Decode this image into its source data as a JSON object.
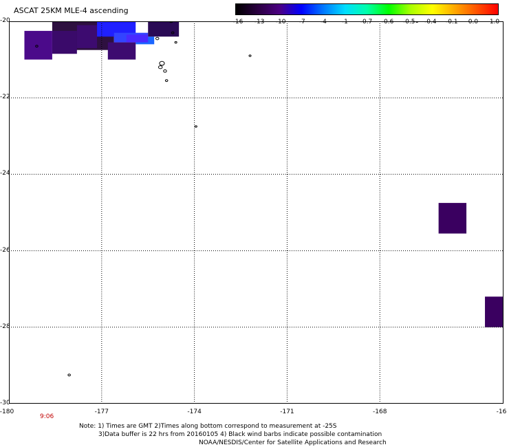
{
  "title": "ASCAT 25KM MLE-4 ascending",
  "colorbar": {
    "labels": [
      "-16",
      "-13",
      "-10",
      "-7",
      "-4",
      "-1",
      "-0.7",
      "-0.6",
      "-0.5",
      "-0.4",
      "-0.1",
      "0.0",
      "1.0"
    ],
    "colors": [
      "#000000",
      "#2a0040",
      "#4b0082",
      "#0000ff",
      "#0077ff",
      "#00ddff",
      "#00ffaa",
      "#00ff00",
      "#aaff00",
      "#ffff00",
      "#ffaa00",
      "#ff5500",
      "#ff0000"
    ]
  },
  "axes": {
    "lat_labels": [
      "-20",
      "-22",
      "-24",
      "-26",
      "-28",
      "-30"
    ],
    "lon_labels": [
      "-180",
      "-177",
      "-174",
      "-171",
      "-168",
      "-16"
    ]
  },
  "time_label": "9:06",
  "notes": {
    "line1": "Note: 1) Times are GMT 2)Times along bottom correspond to measurement at -25S",
    "line2": "3)Data buffer is 22 hrs from 20160105 4) Black wind barbs indicate possible contamination",
    "line3": "NOAA/NESDIS/Center for Satellite Applications and Research"
  },
  "map_data": {
    "lat_range": [
      -30,
      -20
    ],
    "lon_range": [
      -180,
      -164
    ],
    "grid_lats": [
      -22,
      -24,
      -26,
      -28
    ],
    "grid_lons": [
      -177,
      -174,
      -171,
      -168
    ],
    "cells": [
      {
        "lon0": -178.6,
        "lon1": -176.6,
        "lat0": -20.75,
        "lat1": -20.0,
        "color": "#2e1040"
      },
      {
        "lon0": -179.5,
        "lon1": -178.6,
        "lat0": -21.0,
        "lat1": -20.25,
        "color": "#4b0a8a"
      },
      {
        "lon0": -178.6,
        "lon1": -177.8,
        "lat0": -20.85,
        "lat1": -20.25,
        "color": "#3a0a6a"
      },
      {
        "lon0": -177.8,
        "lon1": -177.15,
        "lat0": -20.7,
        "lat1": -20.1,
        "color": "#3d0b70"
      },
      {
        "lon0": -177.15,
        "lon1": -175.9,
        "lat0": -20.4,
        "lat1": -20.0,
        "color": "#2020ff"
      },
      {
        "lon0": -176.6,
        "lon1": -175.5,
        "lat0": -20.55,
        "lat1": -20.3,
        "color": "#3344ff"
      },
      {
        "lon0": -175.9,
        "lon1": -175.3,
        "lat0": -20.6,
        "lat1": -20.4,
        "color": "#1a66ff"
      },
      {
        "lon0": -175.5,
        "lon1": -174.5,
        "lat0": -20.4,
        "lat1": -20.0,
        "color": "#2a0a55"
      },
      {
        "lon0": -176.8,
        "lon1": -175.9,
        "lat0": -21.0,
        "lat1": -20.55,
        "color": "#3d0b70"
      },
      {
        "lon0": -176.2,
        "lon1": -175.5,
        "lat0": -20.55,
        "lat1": -20.35,
        "color": "#4a2aff"
      },
      {
        "lon0": -166.1,
        "lon1": -165.2,
        "lat0": -25.55,
        "lat1": -24.75,
        "color": "#3a0060"
      },
      {
        "lon0": -164.6,
        "lon1": -164.0,
        "lat0": -28.0,
        "lat1": -27.2,
        "color": "#3a0060"
      }
    ],
    "islands": [
      {
        "lon": -179.1,
        "lat": -20.65,
        "r": 0.04
      },
      {
        "lon": -175.2,
        "lat": -20.45,
        "r": 0.05
      },
      {
        "lon": -175.05,
        "lat": -21.1,
        "r": 0.08
      },
      {
        "lon": -175.1,
        "lat": -21.2,
        "r": 0.06
      },
      {
        "lon": -174.95,
        "lat": -21.3,
        "r": 0.05
      },
      {
        "lon": -174.9,
        "lat": -21.55,
        "r": 0.04
      },
      {
        "lon": -174.75,
        "lat": -20.0,
        "r": 0.05
      },
      {
        "lon": -174.7,
        "lat": -20.3,
        "r": 0.04
      },
      {
        "lon": -174.6,
        "lat": -20.55,
        "r": 0.03
      },
      {
        "lon": -172.2,
        "lat": -20.9,
        "r": 0.03
      },
      {
        "lon": -173.95,
        "lat": -22.75,
        "r": 0.02
      },
      {
        "lon": -178.05,
        "lat": -29.25,
        "r": 0.04
      },
      {
        "lon": -166.8,
        "lat": -20.0,
        "r": 0.04
      }
    ]
  }
}
